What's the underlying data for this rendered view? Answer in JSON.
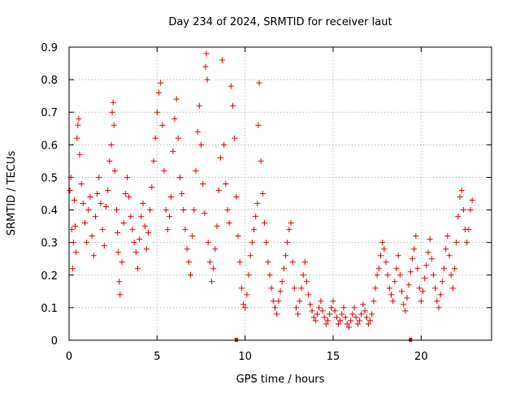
{
  "chart_data": {
    "type": "scatter",
    "title": "Day 234 of 2024, SRMTID for receiver laut",
    "xlabel": "GPS time / hours",
    "ylabel": "SRMTID / TECUs",
    "xlim": [
      0,
      24
    ],
    "ylim": [
      0,
      0.9
    ],
    "x_ticks": [
      0,
      5,
      10,
      15,
      20
    ],
    "x_tick_labels": [
      "0",
      "5",
      "10",
      "15",
      "20"
    ],
    "y_ticks": [
      0,
      0.1,
      0.2,
      0.3,
      0.4,
      0.5,
      0.6,
      0.7,
      0.8,
      0.9
    ],
    "y_tick_labels": [
      "0",
      "0.1",
      "0.2",
      "0.3",
      "0.4",
      "0.5",
      "0.6",
      "0.7",
      "0.8",
      "0.9"
    ],
    "grid": true,
    "marker": "+",
    "series_color": "#e00000",
    "axis_markers_x": [
      9.5,
      19.4
    ],
    "series": [
      {
        "name": "SRMTID",
        "points": [
          [
            0.05,
            0.46
          ],
          [
            0.1,
            0.5
          ],
          [
            0.15,
            0.34
          ],
          [
            0.2,
            0.22
          ],
          [
            0.25,
            0.3
          ],
          [
            0.3,
            0.43
          ],
          [
            0.35,
            0.35
          ],
          [
            0.4,
            0.27
          ],
          [
            0.45,
            0.62
          ],
          [
            0.5,
            0.66
          ],
          [
            0.55,
            0.68
          ],
          [
            0.6,
            0.57
          ],
          [
            0.7,
            0.48
          ],
          [
            0.8,
            0.42
          ],
          [
            0.9,
            0.36
          ],
          [
            1.0,
            0.3
          ],
          [
            1.1,
            0.4
          ],
          [
            1.2,
            0.44
          ],
          [
            1.3,
            0.32
          ],
          [
            1.4,
            0.26
          ],
          [
            1.5,
            0.38
          ],
          [
            1.6,
            0.45
          ],
          [
            1.7,
            0.5
          ],
          [
            1.8,
            0.42
          ],
          [
            1.9,
            0.34
          ],
          [
            2.0,
            0.29
          ],
          [
            2.1,
            0.41
          ],
          [
            2.2,
            0.46
          ],
          [
            2.3,
            0.55
          ],
          [
            2.4,
            0.6
          ],
          [
            2.45,
            0.7
          ],
          [
            2.5,
            0.73
          ],
          [
            2.55,
            0.66
          ],
          [
            2.6,
            0.52
          ],
          [
            2.7,
            0.4
          ],
          [
            2.75,
            0.33
          ],
          [
            2.8,
            0.27
          ],
          [
            2.85,
            0.18
          ],
          [
            2.9,
            0.14
          ],
          [
            3.0,
            0.24
          ],
          [
            3.1,
            0.36
          ],
          [
            3.2,
            0.45
          ],
          [
            3.3,
            0.5
          ],
          [
            3.4,
            0.44
          ],
          [
            3.5,
            0.38
          ],
          [
            3.6,
            0.34
          ],
          [
            3.7,
            0.3
          ],
          [
            3.8,
            0.27
          ],
          [
            3.9,
            0.22
          ],
          [
            4.0,
            0.31
          ],
          [
            4.1,
            0.38
          ],
          [
            4.2,
            0.42
          ],
          [
            4.3,
            0.35
          ],
          [
            4.4,
            0.28
          ],
          [
            4.5,
            0.33
          ],
          [
            4.6,
            0.4
          ],
          [
            4.7,
            0.47
          ],
          [
            4.8,
            0.55
          ],
          [
            4.9,
            0.62
          ],
          [
            5.0,
            0.7
          ],
          [
            5.1,
            0.76
          ],
          [
            5.2,
            0.79
          ],
          [
            5.3,
            0.66
          ],
          [
            5.4,
            0.52
          ],
          [
            5.5,
            0.4
          ],
          [
            5.6,
            0.34
          ],
          [
            5.7,
            0.38
          ],
          [
            5.8,
            0.44
          ],
          [
            5.9,
            0.58
          ],
          [
            6.0,
            0.68
          ],
          [
            6.1,
            0.74
          ],
          [
            6.2,
            0.62
          ],
          [
            6.3,
            0.5
          ],
          [
            6.4,
            0.45
          ],
          [
            6.5,
            0.4
          ],
          [
            6.6,
            0.34
          ],
          [
            6.7,
            0.28
          ],
          [
            6.8,
            0.24
          ],
          [
            6.9,
            0.2
          ],
          [
            7.0,
            0.32
          ],
          [
            7.1,
            0.4
          ],
          [
            7.2,
            0.52
          ],
          [
            7.3,
            0.64
          ],
          [
            7.4,
            0.72
          ],
          [
            7.5,
            0.6
          ],
          [
            7.6,
            0.48
          ],
          [
            7.7,
            0.39
          ],
          [
            7.75,
            0.84
          ],
          [
            7.8,
            0.88
          ],
          [
            7.85,
            0.8
          ],
          [
            7.9,
            0.3
          ],
          [
            8.0,
            0.24
          ],
          [
            8.1,
            0.18
          ],
          [
            8.2,
            0.22
          ],
          [
            8.3,
            0.28
          ],
          [
            8.4,
            0.35
          ],
          [
            8.5,
            0.46
          ],
          [
            8.6,
            0.56
          ],
          [
            8.7,
            0.86
          ],
          [
            8.8,
            0.6
          ],
          [
            8.9,
            0.48
          ],
          [
            9.0,
            0.4
          ],
          [
            9.1,
            0.36
          ],
          [
            9.2,
            0.78
          ],
          [
            9.3,
            0.72
          ],
          [
            9.4,
            0.62
          ],
          [
            9.5,
            0.44
          ],
          [
            9.6,
            0.32
          ],
          [
            9.7,
            0.24
          ],
          [
            9.8,
            0.16
          ],
          [
            9.9,
            0.11
          ],
          [
            10.0,
            0.1
          ],
          [
            10.1,
            0.14
          ],
          [
            10.2,
            0.2
          ],
          [
            10.3,
            0.26
          ],
          [
            10.4,
            0.3
          ],
          [
            10.5,
            0.34
          ],
          [
            10.6,
            0.38
          ],
          [
            10.7,
            0.42
          ],
          [
            10.75,
            0.66
          ],
          [
            10.8,
            0.79
          ],
          [
            10.9,
            0.55
          ],
          [
            11.0,
            0.45
          ],
          [
            11.1,
            0.36
          ],
          [
            11.2,
            0.3
          ],
          [
            11.3,
            0.24
          ],
          [
            11.4,
            0.2
          ],
          [
            11.5,
            0.16
          ],
          [
            11.6,
            0.12
          ],
          [
            11.7,
            0.1
          ],
          [
            11.8,
            0.08
          ],
          [
            11.9,
            0.12
          ],
          [
            12.0,
            0.15
          ],
          [
            12.1,
            0.18
          ],
          [
            12.2,
            0.22
          ],
          [
            12.3,
            0.26
          ],
          [
            12.4,
            0.3
          ],
          [
            12.5,
            0.34
          ],
          [
            12.6,
            0.36
          ],
          [
            12.7,
            0.24
          ],
          [
            12.8,
            0.16
          ],
          [
            12.9,
            0.1
          ],
          [
            13.0,
            0.08
          ],
          [
            13.1,
            0.12
          ],
          [
            13.2,
            0.16
          ],
          [
            13.3,
            0.2
          ],
          [
            13.4,
            0.24
          ],
          [
            13.5,
            0.18
          ],
          [
            13.6,
            0.14
          ],
          [
            13.7,
            0.11
          ],
          [
            13.8,
            0.09
          ],
          [
            13.9,
            0.07
          ],
          [
            14.0,
            0.06
          ],
          [
            14.1,
            0.08
          ],
          [
            14.2,
            0.1
          ],
          [
            14.3,
            0.12
          ],
          [
            14.4,
            0.09
          ],
          [
            14.5,
            0.07
          ],
          [
            14.6,
            0.05
          ],
          [
            14.7,
            0.06
          ],
          [
            14.8,
            0.08
          ],
          [
            14.9,
            0.1
          ],
          [
            15.0,
            0.12
          ],
          [
            15.1,
            0.09
          ],
          [
            15.2,
            0.07
          ],
          [
            15.3,
            0.05
          ],
          [
            15.4,
            0.06
          ],
          [
            15.5,
            0.08
          ],
          [
            15.6,
            0.1
          ],
          [
            15.7,
            0.07
          ],
          [
            15.8,
            0.05
          ],
          [
            15.9,
            0.04
          ],
          [
            16.0,
            0.06
          ],
          [
            16.1,
            0.08
          ],
          [
            16.2,
            0.1
          ],
          [
            16.3,
            0.07
          ],
          [
            16.4,
            0.05
          ],
          [
            16.5,
            0.06
          ],
          [
            16.6,
            0.08
          ],
          [
            16.7,
            0.11
          ],
          [
            16.8,
            0.09
          ],
          [
            16.9,
            0.07
          ],
          [
            17.0,
            0.05
          ],
          [
            17.1,
            0.06
          ],
          [
            17.2,
            0.08
          ],
          [
            17.3,
            0.12
          ],
          [
            17.4,
            0.16
          ],
          [
            17.5,
            0.2
          ],
          [
            17.6,
            0.22
          ],
          [
            17.7,
            0.26
          ],
          [
            17.8,
            0.3
          ],
          [
            17.9,
            0.28
          ],
          [
            18.0,
            0.24
          ],
          [
            18.1,
            0.2
          ],
          [
            18.2,
            0.16
          ],
          [
            18.3,
            0.14
          ],
          [
            18.4,
            0.12
          ],
          [
            18.5,
            0.18
          ],
          [
            18.6,
            0.22
          ],
          [
            18.7,
            0.26
          ],
          [
            18.8,
            0.2
          ],
          [
            18.9,
            0.15
          ],
          [
            19.0,
            0.11
          ],
          [
            19.1,
            0.09
          ],
          [
            19.2,
            0.13
          ],
          [
            19.3,
            0.17
          ],
          [
            19.4,
            0.21
          ],
          [
            19.5,
            0.25
          ],
          [
            19.6,
            0.28
          ],
          [
            19.7,
            0.32
          ],
          [
            19.8,
            0.22
          ],
          [
            19.9,
            0.16
          ],
          [
            20.0,
            0.12
          ],
          [
            20.1,
            0.15
          ],
          [
            20.2,
            0.19
          ],
          [
            20.3,
            0.23
          ],
          [
            20.4,
            0.27
          ],
          [
            20.5,
            0.31
          ],
          [
            20.6,
            0.25
          ],
          [
            20.7,
            0.2
          ],
          [
            20.8,
            0.16
          ],
          [
            20.9,
            0.12
          ],
          [
            21.0,
            0.1
          ],
          [
            21.1,
            0.14
          ],
          [
            21.2,
            0.18
          ],
          [
            21.3,
            0.22
          ],
          [
            21.4,
            0.28
          ],
          [
            21.5,
            0.32
          ],
          [
            21.6,
            0.26
          ],
          [
            21.7,
            0.2
          ],
          [
            21.8,
            0.16
          ],
          [
            21.9,
            0.22
          ],
          [
            22.0,
            0.3
          ],
          [
            22.1,
            0.38
          ],
          [
            22.2,
            0.44
          ],
          [
            22.3,
            0.46
          ],
          [
            22.4,
            0.4
          ],
          [
            22.5,
            0.34
          ],
          [
            22.6,
            0.3
          ],
          [
            22.7,
            0.34
          ],
          [
            22.8,
            0.4
          ],
          [
            22.9,
            0.43
          ]
        ]
      }
    ]
  }
}
